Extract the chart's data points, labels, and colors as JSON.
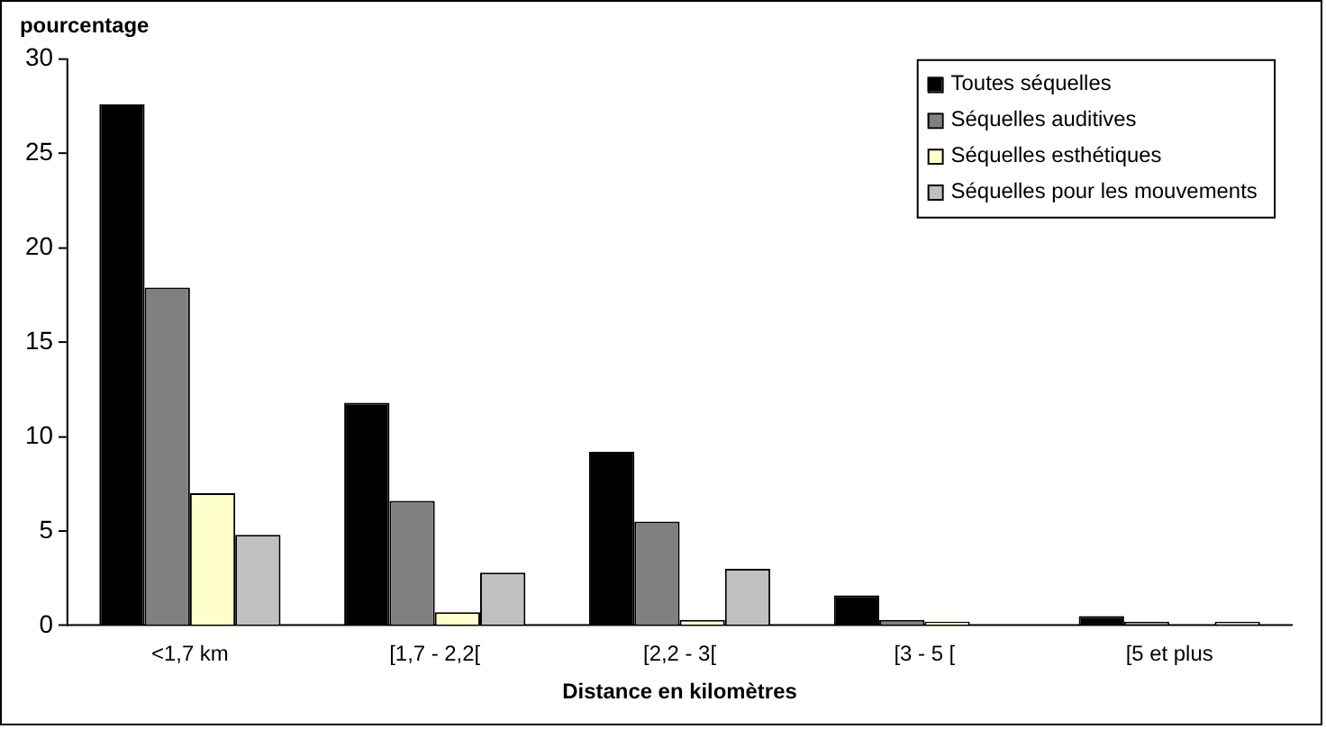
{
  "chart_data": {
    "type": "bar",
    "ylabel": "pourcentage",
    "xlabel": "Distance en kilomètres",
    "categories": [
      "<1,7 km",
      "[1,7 - 2,2[",
      "[2,2 - 3[",
      "[3 - 5 [",
      "[5 et plus"
    ],
    "series": [
      {
        "name": "Toutes séquelles",
        "color": "#000000",
        "values": [
          27.6,
          11.8,
          9.2,
          1.6,
          0.5
        ]
      },
      {
        "name": "Séquelles auditives",
        "color": "#808080",
        "values": [
          17.9,
          6.6,
          5.5,
          0.3,
          0.2
        ]
      },
      {
        "name": "Séquelles esthétiques",
        "color": "#ffffcc",
        "values": [
          7.0,
          0.7,
          0.3,
          0.2,
          0
        ]
      },
      {
        "name": "Séquelles pour les mouvements",
        "color": "#c0c0c0",
        "values": [
          4.8,
          2.8,
          3.0,
          0,
          0.2
        ]
      }
    ],
    "ylim": [
      0,
      30
    ],
    "yticks": [
      0,
      5,
      10,
      15,
      20,
      25,
      30
    ],
    "grid": false,
    "legend": "top right"
  }
}
